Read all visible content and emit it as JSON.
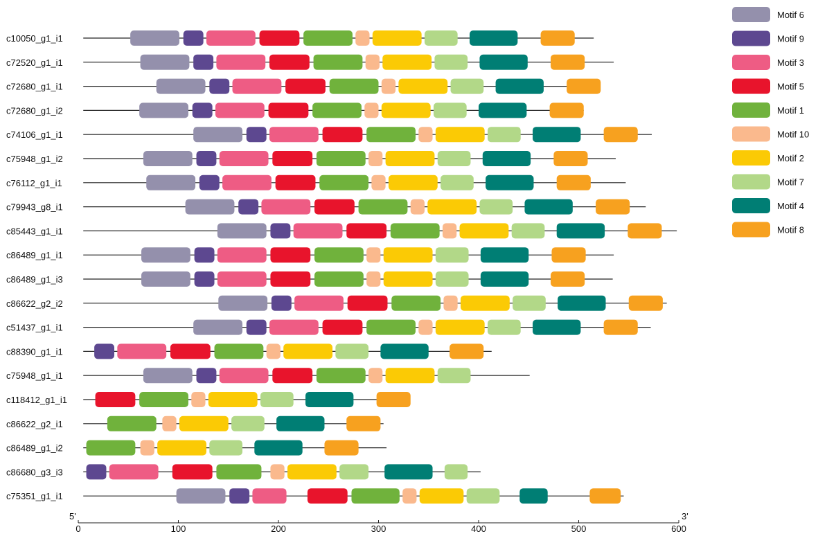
{
  "motifs": [
    {
      "name": "Motif 6",
      "color": "#9490AC"
    },
    {
      "name": "Motif 9",
      "color": "#5D4890"
    },
    {
      "name": "Motif 3",
      "color": "#EE5C84"
    },
    {
      "name": "Motif 5",
      "color": "#E8142C"
    },
    {
      "name": "Motif 1",
      "color": "#70B23C"
    },
    {
      "name": "Motif 10",
      "color": "#FAB98D"
    },
    {
      "name": "Motif 2",
      "color": "#FBCA05"
    },
    {
      "name": "Motif 7",
      "color": "#B2D888"
    },
    {
      "name": "Motif 4",
      "color": "#007E74"
    },
    {
      "name": "Motif 8",
      "color": "#F7A11F"
    }
  ],
  "axis": {
    "min": 0,
    "max": 600,
    "ticks": [
      0,
      100,
      200,
      300,
      400,
      500,
      600
    ],
    "left_end_label": "5'",
    "right_end_label": "3'"
  },
  "sequences": [
    {
      "name": "c10050_g1_i1",
      "start": 5,
      "end": 515,
      "motifs": [
        {
          "m": 0,
          "s": 52,
          "e": 101
        },
        {
          "m": 1,
          "s": 105,
          "e": 125
        },
        {
          "m": 2,
          "s": 128,
          "e": 177
        },
        {
          "m": 3,
          "s": 181,
          "e": 221
        },
        {
          "m": 4,
          "s": 225,
          "e": 274
        },
        {
          "m": 5,
          "s": 277,
          "e": 291
        },
        {
          "m": 6,
          "s": 294,
          "e": 343
        },
        {
          "m": 7,
          "s": 346,
          "e": 379
        },
        {
          "m": 8,
          "s": 391,
          "e": 439
        },
        {
          "m": 9,
          "s": 462,
          "e": 496
        }
      ]
    },
    {
      "name": "c72520_g1_i1",
      "start": 5,
      "end": 535,
      "motifs": [
        {
          "m": 0,
          "s": 62,
          "e": 111
        },
        {
          "m": 1,
          "s": 115,
          "e": 135
        },
        {
          "m": 2,
          "s": 138,
          "e": 187
        },
        {
          "m": 3,
          "s": 191,
          "e": 231
        },
        {
          "m": 4,
          "s": 235,
          "e": 284
        },
        {
          "m": 5,
          "s": 287,
          "e": 301
        },
        {
          "m": 6,
          "s": 304,
          "e": 353
        },
        {
          "m": 7,
          "s": 356,
          "e": 389
        },
        {
          "m": 8,
          "s": 401,
          "e": 449
        },
        {
          "m": 9,
          "s": 472,
          "e": 506
        }
      ]
    },
    {
      "name": "c72680_g1_i1",
      "start": 5,
      "end": 521,
      "motifs": [
        {
          "m": 0,
          "s": 78,
          "e": 127
        },
        {
          "m": 1,
          "s": 131,
          "e": 151
        },
        {
          "m": 2,
          "s": 154,
          "e": 203
        },
        {
          "m": 3,
          "s": 207,
          "e": 247
        },
        {
          "m": 4,
          "s": 251,
          "e": 300
        },
        {
          "m": 5,
          "s": 303,
          "e": 317
        },
        {
          "m": 6,
          "s": 320,
          "e": 369
        },
        {
          "m": 7,
          "s": 372,
          "e": 405
        },
        {
          "m": 8,
          "s": 417,
          "e": 465
        },
        {
          "m": 9,
          "s": 488,
          "e": 522
        }
      ]
    },
    {
      "name": "c72680_g1_i2",
      "start": 5,
      "end": 505,
      "motifs": [
        {
          "m": 0,
          "s": 61,
          "e": 110
        },
        {
          "m": 1,
          "s": 114,
          "e": 134
        },
        {
          "m": 2,
          "s": 137,
          "e": 186
        },
        {
          "m": 3,
          "s": 190,
          "e": 230
        },
        {
          "m": 4,
          "s": 234,
          "e": 283
        },
        {
          "m": 5,
          "s": 286,
          "e": 300
        },
        {
          "m": 6,
          "s": 303,
          "e": 352
        },
        {
          "m": 7,
          "s": 355,
          "e": 388
        },
        {
          "m": 8,
          "s": 400,
          "e": 448
        },
        {
          "m": 9,
          "s": 471,
          "e": 505
        }
      ]
    },
    {
      "name": "c74106_g1_i1",
      "start": 5,
      "end": 573,
      "motifs": [
        {
          "m": 0,
          "s": 115,
          "e": 164
        },
        {
          "m": 1,
          "s": 168,
          "e": 188
        },
        {
          "m": 2,
          "s": 191,
          "e": 240
        },
        {
          "m": 3,
          "s": 244,
          "e": 284
        },
        {
          "m": 4,
          "s": 288,
          "e": 337
        },
        {
          "m": 5,
          "s": 340,
          "e": 354
        },
        {
          "m": 6,
          "s": 357,
          "e": 406
        },
        {
          "m": 7,
          "s": 409,
          "e": 442
        },
        {
          "m": 8,
          "s": 454,
          "e": 502
        },
        {
          "m": 9,
          "s": 525,
          "e": 559
        }
      ]
    },
    {
      "name": "c75948_g1_i2",
      "start": 5,
      "end": 537,
      "motifs": [
        {
          "m": 0,
          "s": 65,
          "e": 114
        },
        {
          "m": 1,
          "s": 118,
          "e": 138
        },
        {
          "m": 2,
          "s": 141,
          "e": 190
        },
        {
          "m": 3,
          "s": 194,
          "e": 234
        },
        {
          "m": 4,
          "s": 238,
          "e": 287
        },
        {
          "m": 5,
          "s": 290,
          "e": 304
        },
        {
          "m": 6,
          "s": 307,
          "e": 356
        },
        {
          "m": 7,
          "s": 359,
          "e": 392
        },
        {
          "m": 8,
          "s": 404,
          "e": 452
        },
        {
          "m": 9,
          "s": 475,
          "e": 509
        }
      ]
    },
    {
      "name": "c76112_g1_i1",
      "start": 5,
      "end": 547,
      "motifs": [
        {
          "m": 0,
          "s": 68,
          "e": 117
        },
        {
          "m": 1,
          "s": 121,
          "e": 141
        },
        {
          "m": 2,
          "s": 144,
          "e": 193
        },
        {
          "m": 3,
          "s": 197,
          "e": 237
        },
        {
          "m": 4,
          "s": 241,
          "e": 290
        },
        {
          "m": 5,
          "s": 293,
          "e": 307
        },
        {
          "m": 6,
          "s": 310,
          "e": 359
        },
        {
          "m": 7,
          "s": 362,
          "e": 395
        },
        {
          "m": 8,
          "s": 407,
          "e": 455
        },
        {
          "m": 9,
          "s": 478,
          "e": 512
        }
      ]
    },
    {
      "name": "c79943_g8_i1",
      "start": 5,
      "end": 567,
      "motifs": [
        {
          "m": 0,
          "s": 107,
          "e": 156
        },
        {
          "m": 1,
          "s": 160,
          "e": 180
        },
        {
          "m": 2,
          "s": 183,
          "e": 232
        },
        {
          "m": 3,
          "s": 236,
          "e": 276
        },
        {
          "m": 4,
          "s": 280,
          "e": 329
        },
        {
          "m": 5,
          "s": 332,
          "e": 346
        },
        {
          "m": 6,
          "s": 349,
          "e": 398
        },
        {
          "m": 7,
          "s": 401,
          "e": 434
        },
        {
          "m": 8,
          "s": 446,
          "e": 494
        },
        {
          "m": 9,
          "s": 517,
          "e": 551
        }
      ]
    },
    {
      "name": "c85443_g1_i1",
      "start": 5,
      "end": 598,
      "motifs": [
        {
          "m": 0,
          "s": 139,
          "e": 188
        },
        {
          "m": 1,
          "s": 192,
          "e": 212
        },
        {
          "m": 2,
          "s": 215,
          "e": 264
        },
        {
          "m": 3,
          "s": 268,
          "e": 308
        },
        {
          "m": 4,
          "s": 312,
          "e": 361
        },
        {
          "m": 5,
          "s": 364,
          "e": 378
        },
        {
          "m": 6,
          "s": 381,
          "e": 430
        },
        {
          "m": 7,
          "s": 433,
          "e": 466
        },
        {
          "m": 8,
          "s": 478,
          "e": 526
        },
        {
          "m": 9,
          "s": 549,
          "e": 583
        }
      ]
    },
    {
      "name": "c86489_g1_i1",
      "start": 5,
      "end": 535,
      "motifs": [
        {
          "m": 0,
          "s": 63,
          "e": 112
        },
        {
          "m": 1,
          "s": 116,
          "e": 136
        },
        {
          "m": 2,
          "s": 139,
          "e": 188
        },
        {
          "m": 3,
          "s": 192,
          "e": 232
        },
        {
          "m": 4,
          "s": 236,
          "e": 285
        },
        {
          "m": 5,
          "s": 288,
          "e": 302
        },
        {
          "m": 6,
          "s": 305,
          "e": 354
        },
        {
          "m": 7,
          "s": 357,
          "e": 390
        },
        {
          "m": 8,
          "s": 402,
          "e": 450
        },
        {
          "m": 9,
          "s": 473,
          "e": 507
        }
      ]
    },
    {
      "name": "c86489_g1_i3",
      "start": 5,
      "end": 534,
      "motifs": [
        {
          "m": 0,
          "s": 63,
          "e": 112
        },
        {
          "m": 1,
          "s": 116,
          "e": 136
        },
        {
          "m": 2,
          "s": 139,
          "e": 188
        },
        {
          "m": 3,
          "s": 192,
          "e": 232
        },
        {
          "m": 4,
          "s": 236,
          "e": 285
        },
        {
          "m": 5,
          "s": 288,
          "e": 302
        },
        {
          "m": 6,
          "s": 305,
          "e": 354
        },
        {
          "m": 7,
          "s": 357,
          "e": 390
        },
        {
          "m": 8,
          "s": 402,
          "e": 450
        },
        {
          "m": 9,
          "s": 472,
          "e": 506
        }
      ]
    },
    {
      "name": "c86622_g2_i2",
      "start": 5,
      "end": 588,
      "motifs": [
        {
          "m": 0,
          "s": 140,
          "e": 189
        },
        {
          "m": 1,
          "s": 193,
          "e": 213
        },
        {
          "m": 2,
          "s": 216,
          "e": 265
        },
        {
          "m": 3,
          "s": 269,
          "e": 309
        },
        {
          "m": 4,
          "s": 313,
          "e": 362
        },
        {
          "m": 5,
          "s": 365,
          "e": 379
        },
        {
          "m": 6,
          "s": 382,
          "e": 431
        },
        {
          "m": 7,
          "s": 434,
          "e": 467
        },
        {
          "m": 8,
          "s": 479,
          "e": 527
        },
        {
          "m": 9,
          "s": 550,
          "e": 584
        }
      ]
    },
    {
      "name": "c51437_g1_i1",
      "start": 5,
      "end": 572,
      "motifs": [
        {
          "m": 0,
          "s": 115,
          "e": 164
        },
        {
          "m": 1,
          "s": 168,
          "e": 188
        },
        {
          "m": 2,
          "s": 191,
          "e": 240
        },
        {
          "m": 3,
          "s": 244,
          "e": 284
        },
        {
          "m": 4,
          "s": 288,
          "e": 337
        },
        {
          "m": 5,
          "s": 340,
          "e": 354
        },
        {
          "m": 6,
          "s": 357,
          "e": 406
        },
        {
          "m": 7,
          "s": 409,
          "e": 442
        },
        {
          "m": 8,
          "s": 454,
          "e": 502
        },
        {
          "m": 9,
          "s": 525,
          "e": 559
        }
      ]
    },
    {
      "name": "c88390_g1_i1",
      "start": 5,
      "end": 413,
      "motifs": [
        {
          "m": 1,
          "s": 16,
          "e": 36
        },
        {
          "m": 2,
          "s": 39,
          "e": 88
        },
        {
          "m": 3,
          "s": 92,
          "e": 132
        },
        {
          "m": 4,
          "s": 136,
          "e": 185
        },
        {
          "m": 5,
          "s": 188,
          "e": 202
        },
        {
          "m": 6,
          "s": 205,
          "e": 254
        },
        {
          "m": 7,
          "s": 257,
          "e": 290
        },
        {
          "m": 8,
          "s": 302,
          "e": 350
        },
        {
          "m": 9,
          "s": 371,
          "e": 405
        }
      ]
    },
    {
      "name": "c75948_g1_i1",
      "start": 5,
      "end": 451,
      "motifs": [
        {
          "m": 0,
          "s": 65,
          "e": 114
        },
        {
          "m": 1,
          "s": 118,
          "e": 138
        },
        {
          "m": 2,
          "s": 141,
          "e": 190
        },
        {
          "m": 3,
          "s": 194,
          "e": 234
        },
        {
          "m": 4,
          "s": 238,
          "e": 287
        },
        {
          "m": 5,
          "s": 290,
          "e": 304
        },
        {
          "m": 6,
          "s": 307,
          "e": 356
        },
        {
          "m": 7,
          "s": 359,
          "e": 392
        }
      ]
    },
    {
      "name": "c118412_g1_i1",
      "start": 5,
      "end": 331,
      "motifs": [
        {
          "m": 3,
          "s": 17,
          "e": 57
        },
        {
          "m": 4,
          "s": 61,
          "e": 110
        },
        {
          "m": 5,
          "s": 113,
          "e": 127
        },
        {
          "m": 6,
          "s": 130,
          "e": 179
        },
        {
          "m": 7,
          "s": 182,
          "e": 215
        },
        {
          "m": 8,
          "s": 227,
          "e": 275
        },
        {
          "m": 9,
          "s": 298,
          "e": 332
        }
      ]
    },
    {
      "name": "c86622_g2_i1",
      "start": 5,
      "end": 305,
      "motifs": [
        {
          "m": 4,
          "s": 29,
          "e": 78
        },
        {
          "m": 5,
          "s": 84,
          "e": 98
        },
        {
          "m": 6,
          "s": 101,
          "e": 150
        },
        {
          "m": 7,
          "s": 153,
          "e": 186
        },
        {
          "m": 8,
          "s": 198,
          "e": 246
        },
        {
          "m": 9,
          "s": 268,
          "e": 302
        }
      ]
    },
    {
      "name": "c86489_g1_i2",
      "start": 5,
      "end": 308,
      "motifs": [
        {
          "m": 4,
          "s": 8,
          "e": 57
        },
        {
          "m": 5,
          "s": 62,
          "e": 76
        },
        {
          "m": 6,
          "s": 79,
          "e": 128
        },
        {
          "m": 7,
          "s": 131,
          "e": 164
        },
        {
          "m": 8,
          "s": 176,
          "e": 224
        },
        {
          "m": 9,
          "s": 246,
          "e": 280
        }
      ]
    },
    {
      "name": "c86680_g3_i3",
      "start": 5,
      "end": 402,
      "motifs": [
        {
          "m": 1,
          "s": 8,
          "e": 28
        },
        {
          "m": 2,
          "s": 31,
          "e": 80
        },
        {
          "m": 3,
          "s": 94,
          "e": 134
        },
        {
          "m": 4,
          "s": 138,
          "e": 183
        },
        {
          "m": 5,
          "s": 192,
          "e": 206
        },
        {
          "m": 6,
          "s": 209,
          "e": 258
        },
        {
          "m": 7,
          "s": 261,
          "e": 290
        },
        {
          "m": 8,
          "s": 306,
          "e": 354
        },
        {
          "m": 7,
          "s": 366,
          "e": 389
        }
      ]
    },
    {
      "name": "c75351_g1_i1",
      "start": 5,
      "end": 545,
      "motifs": [
        {
          "m": 0,
          "s": 98,
          "e": 147
        },
        {
          "m": 1,
          "s": 151,
          "e": 171
        },
        {
          "m": 2,
          "s": 174,
          "e": 208
        },
        {
          "m": 3,
          "s": 229,
          "e": 269
        },
        {
          "m": 4,
          "s": 273,
          "e": 321
        },
        {
          "m": 5,
          "s": 324,
          "e": 338
        },
        {
          "m": 6,
          "s": 341,
          "e": 385
        },
        {
          "m": 7,
          "s": 388,
          "e": 421
        },
        {
          "m": 8,
          "s": 441,
          "e": 469
        },
        {
          "m": 9,
          "s": 511,
          "e": 542
        }
      ]
    }
  ]
}
